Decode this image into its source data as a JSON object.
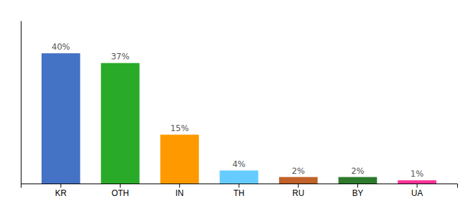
{
  "chart_data": {
    "type": "bar",
    "categories": [
      "KR",
      "OTH",
      "IN",
      "TH",
      "RU",
      "BY",
      "UA"
    ],
    "values": [
      40,
      37,
      15,
      4,
      2,
      2,
      1
    ],
    "value_labels": [
      "40%",
      "37%",
      "15%",
      "4%",
      "2%",
      "2%",
      "1%"
    ],
    "colors": [
      "#4472c4",
      "#29ab29",
      "#ff9900",
      "#66ccff",
      "#c0622a",
      "#2d7a2d",
      "#ff3399"
    ],
    "ylim": [
      0,
      50
    ],
    "yticks": [],
    "data_labels": true,
    "tick_labels": "x"
  }
}
